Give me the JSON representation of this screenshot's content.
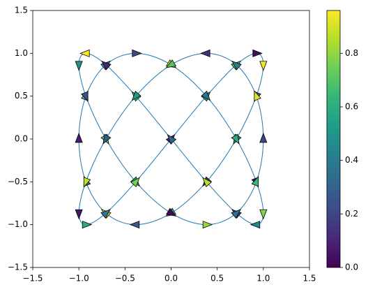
{
  "chart_data": {
    "type": "quiver-curve",
    "curve": {
      "color": "#1f77b4",
      "x": [
        0,
        0.383,
        0.707,
        0.924,
        1,
        0.924,
        0.707,
        0.383,
        0,
        -0.383,
        -0.707,
        -0.924,
        -1,
        -0.924,
        -0.707,
        -0.383,
        0,
        0.383,
        0.707,
        0.924,
        1,
        0.924,
        0.707,
        0.383,
        0,
        -0.383,
        -0.707,
        -0.924,
        -1,
        -0.924,
        -0.707,
        -0.383,
        0,
        0.383,
        0.707,
        0.924,
        1,
        0.924,
        0.707,
        0.383,
        0,
        -0.383,
        -0.707,
        -0.924,
        -1,
        -0.924,
        -0.707,
        -0.383
      ],
      "y": [
        0,
        0.5,
        0.866,
        1,
        0.866,
        0.5,
        0,
        -0.5,
        -0.866,
        -1,
        -0.866,
        -0.5,
        0,
        0.5,
        0.866,
        1,
        0.866,
        0.5,
        0,
        -0.5,
        -0.866,
        -1,
        -0.866,
        -0.5,
        0,
        0.5,
        0.866,
        1,
        0.866,
        0.5,
        0,
        -0.5,
        -0.866,
        -1,
        -0.866,
        -0.5,
        0,
        0.5,
        0.866,
        1,
        0.866,
        0.5,
        0,
        -0.5,
        -0.866,
        -1,
        -0.866,
        -0.5
      ]
    },
    "arrow_values": [
      0.12,
      0.55,
      0.71,
      0.03,
      0.94,
      0.33,
      0.46,
      0.15,
      0.62,
      0.27,
      0.88,
      0.4,
      0.08,
      0.69,
      0.51,
      0.22,
      0.9,
      0.37,
      0.6,
      0.05,
      0.78,
      0.44,
      0.18,
      0.85,
      0.3,
      0.67,
      0.1,
      0.95,
      0.48,
      0.24,
      0.74,
      0.58,
      0.02,
      0.81,
      0.36,
      0.64,
      0.2,
      0.92,
      0.42,
      0.13,
      0.7,
      0.53,
      0.28,
      0.87,
      0.06,
      0.6,
      0.39,
      0.76
    ],
    "colormap": "viridis",
    "clim": [
      0,
      0.96
    ],
    "cticks": [
      {
        "value": 0,
        "label": "0.0"
      },
      0.2,
      0.4,
      0.6,
      0.8
    ],
    "xlim": [
      -1.5,
      1.5
    ],
    "ylim": [
      -1.5,
      1.5
    ],
    "xticks": [
      {
        "value": -1.5,
        "label": "−1.5"
      },
      {
        "value": -1,
        "label": "−1.0"
      },
      {
        "value": -0.5,
        "label": "−0.5"
      },
      {
        "value": 0,
        "label": "0.0"
      },
      0.5,
      {
        "value": 1,
        "label": "1.0"
      },
      1.5
    ],
    "yticks": [
      {
        "value": -1.5,
        "label": "−1.5"
      },
      {
        "value": -1,
        "label": "−1.0"
      },
      {
        "value": -0.5,
        "label": "−0.5"
      },
      {
        "value": 0,
        "label": "0.0"
      },
      0.5,
      {
        "value": 1,
        "label": "1.0"
      },
      1.5
    ]
  }
}
